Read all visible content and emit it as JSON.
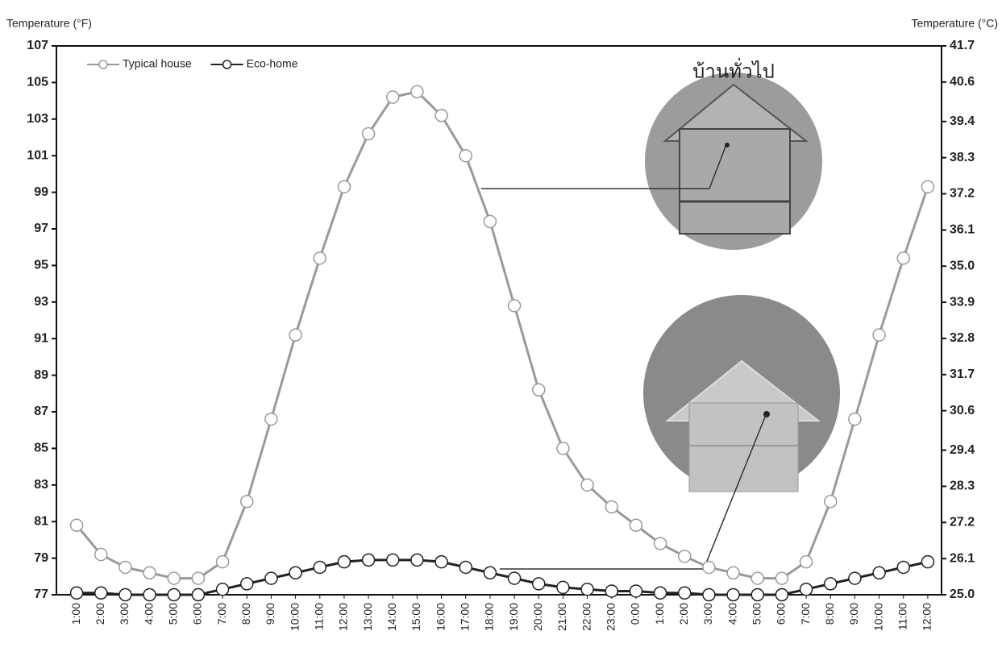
{
  "chart_data": {
    "type": "line",
    "y_axis_label": "Temperature (°F)",
    "y2_axis_label": "Temperature (°C)",
    "annotation": "บ้านทั่วไป",
    "categories": [
      "1:00",
      "2:00",
      "3:00",
      "4:00",
      "5:00",
      "6:00",
      "7:00",
      "8:00",
      "9:00",
      "10:00",
      "11:00",
      "12:00",
      "13:00",
      "14:00",
      "15:00",
      "16:00",
      "17:00",
      "18:00",
      "19:00",
      "20:00",
      "21:00",
      "22:00",
      "23:00",
      "0:00",
      "1:00",
      "2:00",
      "3:00",
      "4:00",
      "5:00",
      "6:00",
      "7:00",
      "8:00",
      "9:00",
      "10:00",
      "11:00",
      "12:00"
    ],
    "series": [
      {
        "name": "Typical house",
        "color": "#9a9a9a",
        "values": [
          80.8,
          79.2,
          78.5,
          78.2,
          77.9,
          77.9,
          78.8,
          82.1,
          86.6,
          91.2,
          95.4,
          99.3,
          102.2,
          104.2,
          104.5,
          103.2,
          101.0,
          97.4,
          92.8,
          88.2,
          85.0,
          83.0,
          81.8,
          80.8,
          79.8,
          79.1,
          78.5,
          78.2,
          77.9,
          77.9,
          78.8,
          82.1,
          86.6,
          91.2,
          95.4,
          99.3
        ]
      },
      {
        "name": "Eco-home",
        "color": "#222222",
        "values": [
          77.1,
          77.1,
          77.0,
          77.0,
          77.0,
          77.0,
          77.3,
          77.6,
          77.9,
          78.2,
          78.5,
          78.8,
          78.9,
          78.9,
          78.9,
          78.8,
          78.5,
          78.2,
          77.9,
          77.6,
          77.4,
          77.3,
          77.2,
          77.2,
          77.1,
          77.1,
          77.0,
          77.0,
          77.0,
          77.0,
          77.3,
          77.6,
          77.9,
          78.2,
          78.5,
          78.8
        ]
      }
    ],
    "ylim": [
      77,
      107
    ],
    "yticks": [
      77,
      79,
      81,
      83,
      85,
      87,
      89,
      91,
      93,
      95,
      97,
      99,
      101,
      103,
      105,
      107
    ],
    "y2lim": [
      25,
      41.7
    ],
    "y2ticks": [
      {
        "value": 25,
        "label": "25.0"
      },
      26.1,
      27.2,
      28.3,
      29.4,
      30.6,
      31.7,
      32.8,
      33.9,
      {
        "value": 35,
        "label": "35.0"
      },
      36.1,
      37.2,
      38.3,
      39.4,
      40.6,
      41.7
    ],
    "grid": false,
    "legend": "upper left"
  }
}
